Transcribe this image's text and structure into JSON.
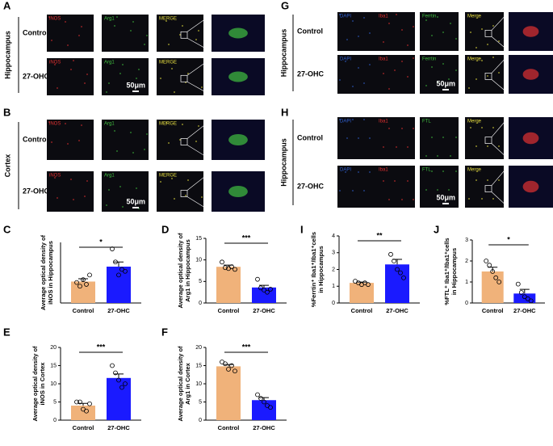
{
  "image_panels": [
    {
      "letter": "A",
      "region": "Hippocampus",
      "rows": [
        "Control",
        "27-OHC"
      ],
      "channels": [
        "iNOS",
        "Arg1",
        "MERGE"
      ],
      "channel_colors": [
        "#e03030",
        "#40c040",
        "#e8e040"
      ],
      "scale_bar": "50μm"
    },
    {
      "letter": "B",
      "region": "Cortex",
      "rows": [
        "Control",
        "27-OHC"
      ],
      "channels": [
        "iNOS",
        "Arg1",
        "MERGE"
      ],
      "channel_colors": [
        "#e03030",
        "#40c040",
        "#e8e040"
      ],
      "scale_bar": "50μm"
    },
    {
      "letter": "G",
      "region": "Hippocampus",
      "rows": [
        "Control",
        "27-OHC"
      ],
      "channels": [
        "DAPI",
        "Iba1",
        "Ferrtin",
        "Merge"
      ],
      "channel_colors": [
        "#3060d0",
        "#e03030",
        "#40c040",
        "#e8e040"
      ],
      "scale_bar": "50μm"
    },
    {
      "letter": "H",
      "region": "Hippocampus",
      "rows": [
        "Control",
        "27-OHC"
      ],
      "channels": [
        "DAPI",
        "Iba1",
        "FTL",
        "Merge"
      ],
      "channel_colors": [
        "#3060d0",
        "#e03030",
        "#40c040",
        "#e8e040"
      ],
      "scale_bar": "50μm"
    }
  ],
  "chart_data": [
    {
      "type": "bar",
      "panel": "C",
      "ylabel": [
        "Average optical density of",
        "iNOS in Hippocampus"
      ],
      "categories": [
        "Control",
        "27-OHC"
      ],
      "colors": [
        "#f0b27a",
        "#1a1aff"
      ],
      "values": [
        2.3,
        3.9
      ],
      "errors": [
        0.3,
        0.5
      ],
      "points": [
        [
          2.2,
          1.8,
          2.5,
          2.0,
          3.0
        ],
        [
          5.8,
          4.4,
          3.0,
          3.6,
          3.4
        ]
      ],
      "significance": "*",
      "ylim": [
        0,
        6.5
      ]
    },
    {
      "type": "bar",
      "panel": "D",
      "ylabel": [
        "Average optical density of",
        "Arg1 in Hippocampus"
      ],
      "categories": [
        "Control",
        "27-OHC"
      ],
      "colors": [
        "#f0b27a",
        "#1a1aff"
      ],
      "values": [
        8.4,
        3.6
      ],
      "errors": [
        0.4,
        0.5
      ],
      "points": [
        [
          9.5,
          8.2,
          8.0,
          8.4,
          7.8
        ],
        [
          5.5,
          3.5,
          3.0,
          2.5,
          3.2
        ]
      ],
      "significance": "***",
      "ylim": [
        0,
        15
      ],
      "yticks": [
        0,
        5,
        10,
        15
      ]
    },
    {
      "type": "bar",
      "panel": "E",
      "ylabel": [
        "Average optical density of",
        "iNOS in Cortex"
      ],
      "categories": [
        "Control",
        "27-OHC"
      ],
      "colors": [
        "#f0b27a",
        "#1a1aff"
      ],
      "values": [
        4.0,
        11.6
      ],
      "errors": [
        0.6,
        1.1
      ],
      "points": [
        [
          5,
          5,
          3,
          2.5,
          4.5
        ],
        [
          15,
          13,
          11,
          9,
          10
        ]
      ],
      "significance": "***",
      "ylim": [
        0,
        20
      ],
      "yticks": [
        0,
        5,
        10,
        15,
        20
      ]
    },
    {
      "type": "bar",
      "panel": "F",
      "ylabel": [
        "Average optical density of",
        "Arg1 in Cortex"
      ],
      "categories": [
        "Control",
        "27-OHC"
      ],
      "colors": [
        "#f0b27a",
        "#1a1aff"
      ],
      "values": [
        14.8,
        5.5
      ],
      "errors": [
        0.5,
        0.7
      ],
      "points": [
        [
          16,
          15.5,
          14,
          15,
          13.5
        ],
        [
          7,
          6,
          5,
          4,
          3.5
        ]
      ],
      "significance": "***",
      "ylim": [
        0,
        20
      ],
      "yticks": [
        0,
        5,
        10,
        15,
        20
      ]
    },
    {
      "type": "bar",
      "panel": "I",
      "ylabel": [
        "%Ferrtin⁺ Iba1⁺/Iba1⁺cells",
        "in Hippocampus"
      ],
      "categories": [
        "Control",
        "27-OHC"
      ],
      "colors": [
        "#f0b27a",
        "#1a1aff"
      ],
      "values": [
        1.2,
        2.3
      ],
      "errors": [
        0.05,
        0.3
      ],
      "points": [
        [
          1.3,
          1.2,
          1.1,
          1.2,
          1.1
        ],
        [
          2.9,
          2.5,
          2.0,
          1.8,
          1.5
        ]
      ],
      "significance": "**",
      "ylim": [
        0,
        4
      ],
      "yticks": [
        0,
        1,
        2,
        3,
        4
      ]
    },
    {
      "type": "bar",
      "panel": "J",
      "ylabel": [
        "%FTL⁺ Iba1⁺/Iba1⁺cells",
        "in Hippocampus"
      ],
      "categories": [
        "Control",
        "27-OHC"
      ],
      "colors": [
        "#f0b27a",
        "#1a1aff"
      ],
      "values": [
        1.5,
        0.45
      ],
      "errors": [
        0.2,
        0.2
      ],
      "points": [
        [
          2.0,
          1.8,
          1.5,
          1.2,
          1.0
        ],
        [
          0.9,
          0.5,
          0.3,
          0.2,
          0.1
        ]
      ],
      "significance": "*",
      "ylim": [
        0,
        3
      ],
      "yticks": [
        0,
        1,
        2,
        3
      ]
    }
  ]
}
